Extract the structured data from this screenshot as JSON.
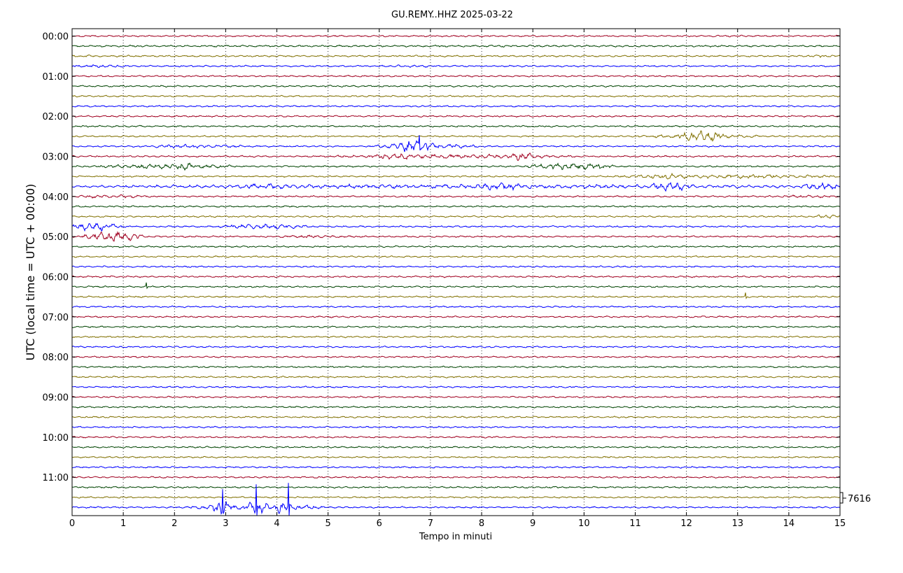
{
  "chart_data": {
    "type": "line",
    "title": "GU.REMY..HHZ 2025-03-22",
    "xlabel": "Tempo in minuti",
    "ylabel": "UTC (local time = UTC + 00:00)",
    "xlim": [
      0,
      15
    ],
    "x_ticks": [
      "0",
      "1",
      "2",
      "3",
      "4",
      "5",
      "6",
      "7",
      "8",
      "9",
      "10",
      "11",
      "12",
      "13",
      "14",
      "15"
    ],
    "y_ticks": [
      "00:00",
      "01:00",
      "02:00",
      "03:00",
      "04:00",
      "05:00",
      "06:00",
      "07:00",
      "08:00",
      "09:00",
      "10:00",
      "11:00"
    ],
    "trace_count": 48,
    "trace_interval_minutes": 15,
    "trace_colors": [
      "#a00020",
      "#004400",
      "#807000",
      "#0000ff"
    ],
    "grid": "vertical-dotted",
    "scale_label": "7616",
    "events": [
      {
        "trace": 1,
        "start": 0.0,
        "end": 15.0,
        "amp": 1.2
      },
      {
        "trace": 2,
        "start": 0.0,
        "end": 0.5,
        "amp": 1.5
      },
      {
        "trace": 2,
        "start": 14.3,
        "end": 15.0,
        "amp": 1.8
      },
      {
        "trace": 3,
        "start": 0.0,
        "end": 1.2,
        "amp": 1.8
      },
      {
        "trace": 3,
        "start": 6.0,
        "end": 7.2,
        "amp": 1.6
      },
      {
        "trace": 10,
        "start": 11.0,
        "end": 13.5,
        "amp": 2.2
      },
      {
        "trace": 10,
        "start": 11.8,
        "end": 12.8,
        "amp": 7.0
      },
      {
        "trace": 11,
        "start": 1.5,
        "end": 3.4,
        "amp": 2.2
      },
      {
        "trace": 11,
        "start": 5.8,
        "end": 8.0,
        "amp": 3.0
      },
      {
        "trace": 11,
        "start": 6.2,
        "end": 7.1,
        "amp": 8.0
      },
      {
        "trace": 12,
        "start": 5.0,
        "end": 10.0,
        "amp": 2.5
      },
      {
        "trace": 12,
        "start": 5.9,
        "end": 6.7,
        "amp": 4.0
      },
      {
        "trace": 12,
        "start": 8.4,
        "end": 9.1,
        "amp": 5.0
      },
      {
        "trace": 13,
        "start": 0.5,
        "end": 3.2,
        "amp": 3.0
      },
      {
        "trace": 13,
        "start": 2.0,
        "end": 2.4,
        "amp": 5.0
      },
      {
        "trace": 13,
        "start": 8.8,
        "end": 10.6,
        "amp": 4.5
      },
      {
        "trace": 14,
        "start": 10.5,
        "end": 15.0,
        "amp": 2.5
      },
      {
        "trace": 14,
        "start": 11.1,
        "end": 12.2,
        "amp": 3.5
      },
      {
        "trace": 15,
        "start": 0.0,
        "end": 15.0,
        "amp": 2.5
      },
      {
        "trace": 15,
        "start": 3.0,
        "end": 4.5,
        "amp": 3.5
      },
      {
        "trace": 15,
        "start": 7.8,
        "end": 9.0,
        "amp": 4.5
      },
      {
        "trace": 15,
        "start": 11.2,
        "end": 12.2,
        "amp": 5.0
      },
      {
        "trace": 15,
        "start": 14.2,
        "end": 15.0,
        "amp": 5.0
      },
      {
        "trace": 16,
        "start": 0.0,
        "end": 1.5,
        "amp": 2.0
      },
      {
        "trace": 16,
        "start": 13.5,
        "end": 15.0,
        "amp": 1.8
      },
      {
        "trace": 18,
        "start": 14.5,
        "end": 15.0,
        "amp": 2.5
      },
      {
        "trace": 19,
        "start": 0.0,
        "end": 1.0,
        "amp": 5.0
      },
      {
        "trace": 19,
        "start": 2.8,
        "end": 4.6,
        "amp": 3.2
      },
      {
        "trace": 20,
        "start": 0.2,
        "end": 1.4,
        "amp": 6.0
      },
      {
        "trace": 20,
        "start": 4.0,
        "end": 5.5,
        "amp": 1.8
      },
      {
        "trace": 47,
        "start": 2.2,
        "end": 5.0,
        "amp": 3.5
      },
      {
        "trace": 47,
        "start": 2.7,
        "end": 3.1,
        "amp": 9.0
      },
      {
        "trace": 47,
        "start": 3.3,
        "end": 3.9,
        "amp": 8.0
      },
      {
        "trace": 47,
        "start": 3.9,
        "end": 4.3,
        "amp": 8.0
      }
    ],
    "spikes": [
      {
        "trace": 11,
        "x": 6.78,
        "amp": 16
      },
      {
        "trace": 25,
        "x": 1.45,
        "amp": 6
      },
      {
        "trace": 26,
        "x": 13.15,
        "amp": 6
      },
      {
        "trace": 47,
        "x": 2.94,
        "amp": 26
      },
      {
        "trace": 47,
        "x": 3.6,
        "amp": 33
      },
      {
        "trace": 47,
        "x": 4.22,
        "amp": 35
      }
    ]
  }
}
